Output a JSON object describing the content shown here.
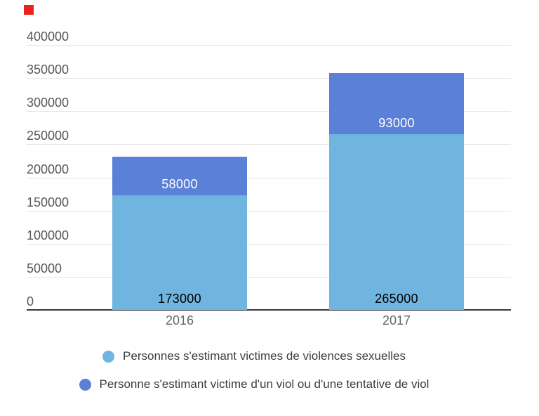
{
  "chart_data": {
    "type": "bar",
    "stacked": true,
    "title": "",
    "categories": [
      "2016",
      "2017"
    ],
    "series": [
      {
        "name": "Personnes s'estimant victimes de violences sexuelles",
        "color": "#70B5E0",
        "values": [
          173000,
          265000
        ],
        "value_labels": [
          "173000",
          "265000"
        ],
        "value_label_color": "#000000"
      },
      {
        "name": "Personne s'estimant victime d'un viol ou d'une tentative de viol",
        "color": "#5B80D7",
        "values": [
          58000,
          93000
        ],
        "value_labels": [
          "58000",
          "93000"
        ],
        "value_label_color": "#ffffff"
      }
    ],
    "ylim": [
      0,
      400000
    ],
    "ytick_interval": 50000,
    "ytick_labels": [
      "400000",
      "350000",
      "300000",
      "250000",
      "200000",
      "150000",
      "100000",
      "50000",
      "0"
    ],
    "grid": true,
    "legend_position": "bottom",
    "value_label_placement": "inside-bottom-of-segment"
  },
  "colors": {
    "background": "#ffffff",
    "grid": "#e6e6e6",
    "axis": "#383838",
    "tick_label": "#58595b",
    "category_label": "#666666",
    "legend_text": "#3d3d3d",
    "red_marker": "#e8231c"
  }
}
